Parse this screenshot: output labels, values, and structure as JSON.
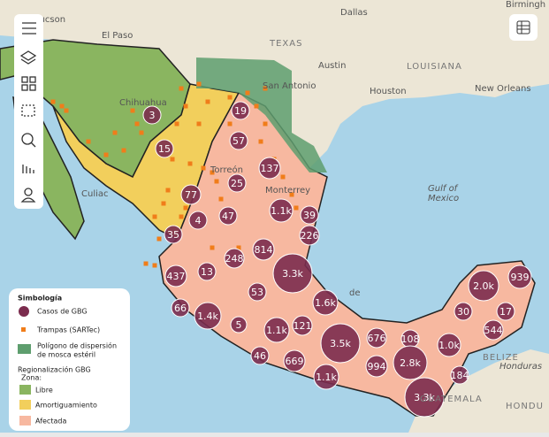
{
  "places": [
    "Dallas",
    "Tucson",
    "El Paso",
    "TEXAS",
    "Austin",
    "LOUISIANA",
    "San Antonio",
    "Houston",
    "New Orleans",
    "Chihuahua",
    "Culiac",
    "Gulf of",
    "Mexico",
    "BELIZE",
    "Honduras",
    "GUATEMALA",
    "HONDU",
    "Birmingh",
    "Torreón",
    "Monterrey",
    "de"
  ],
  "clusters": [
    "3",
    "19",
    "57",
    "15",
    "137",
    "25",
    "77",
    "1.1k",
    "39",
    "47",
    "4",
    "226",
    "35",
    "814",
    "248",
    "3.3k",
    "437",
    "13",
    "53",
    "1.6k",
    "66",
    "1.4k",
    "5",
    "1.1k",
    "121",
    "3.5k",
    "676",
    "108",
    "1.0k",
    "994",
    "2.8k",
    "46",
    "669",
    "1.1k",
    "184",
    "3.3k",
    "2.0k",
    "939",
    "30",
    "17",
    "544"
  ],
  "legend": {
    "title": "Simbología",
    "cases": "Casos de GBG",
    "traps": "Trampas (SARTec)",
    "polygon_line1": "Polígono de dispersión",
    "polygon_line2": "de mosca estéril",
    "region": "Regionalización GBG",
    "zone": "Zona:",
    "free": "Libre",
    "buffer": "Amortiguamiento",
    "affected": "Afectada"
  }
}
